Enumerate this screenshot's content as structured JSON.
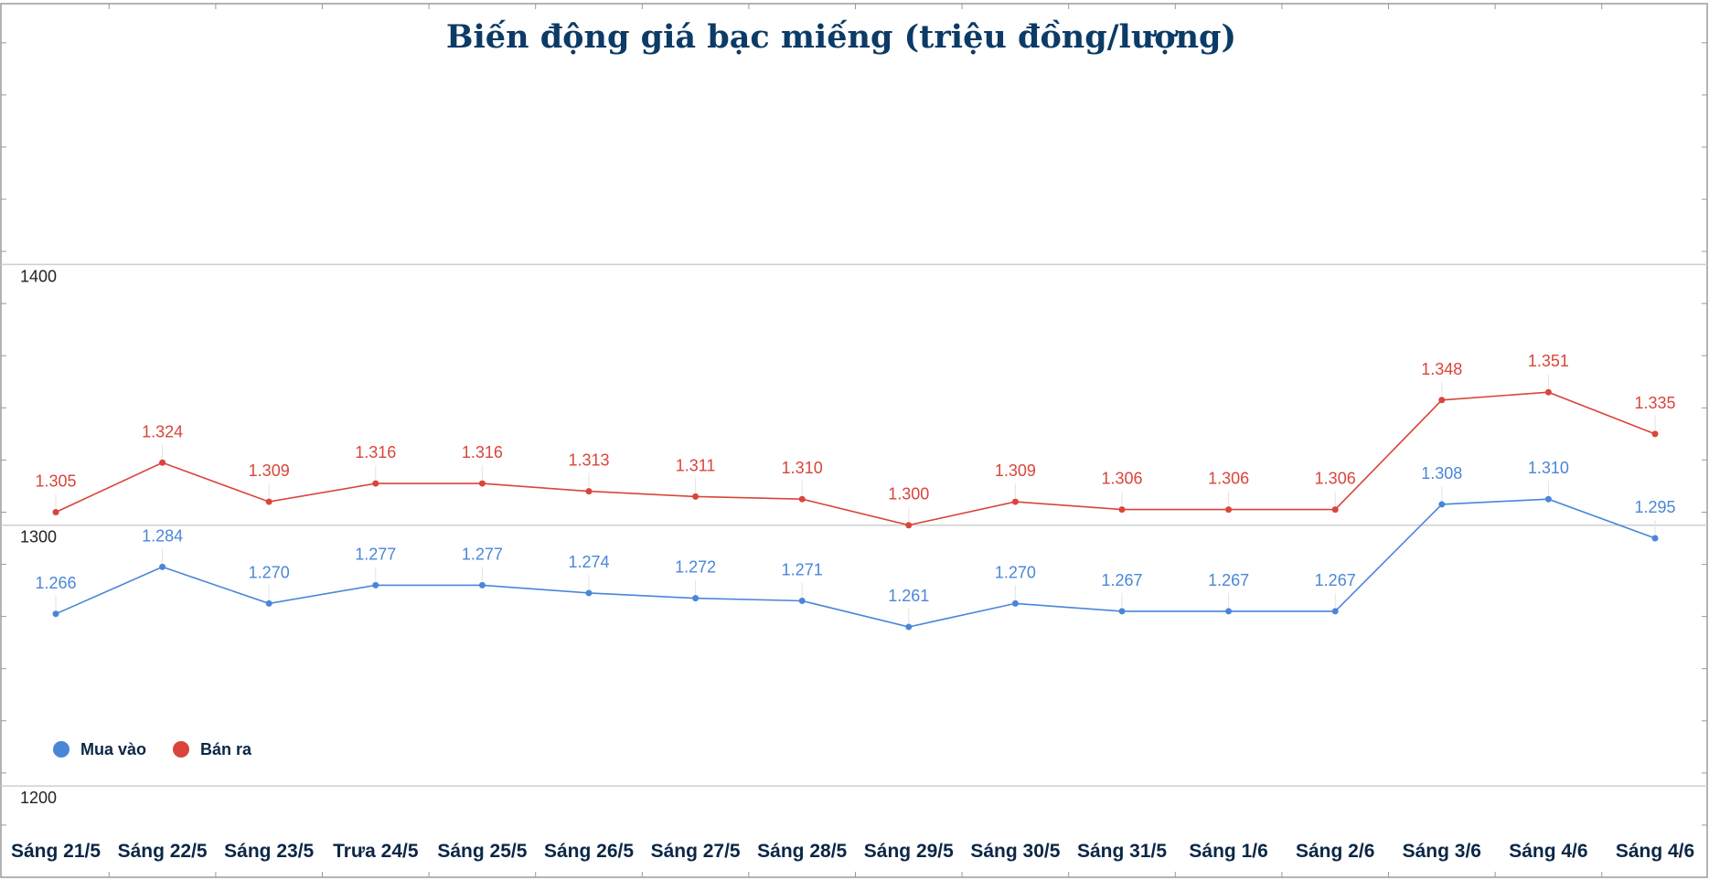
{
  "colors": {
    "buy": "#4a86d8",
    "sell": "#d9453a",
    "title": "#0b3b66",
    "grid": "#cfcfcf",
    "frame": "#9a9a9a"
  },
  "chart_data": {
    "type": "line",
    "title": "Biến động giá bạc miếng (triệu đồng/lượng)",
    "xlabel": "",
    "ylabel": "",
    "ylim": [
      1165,
      1500
    ],
    "yticks": [
      1200,
      1300,
      1400
    ],
    "ytick_labels": [
      "1200",
      "1300",
      "1400"
    ],
    "grid": true,
    "legend_position": "bottom-left",
    "categories": [
      "Sáng 21/5",
      "Sáng 22/5",
      "Sáng 23/5",
      "Trưa 24/5",
      "Sáng 25/5",
      "Sáng 26/5",
      "Sáng 27/5",
      "Sáng 28/5",
      "Sáng 29/5",
      "Sáng 30/5",
      "Sáng 31/5",
      "Sáng 1/6",
      "Sáng 2/6",
      "Sáng 3/6",
      "Sáng 4/6",
      "Sáng 4/6"
    ],
    "series": [
      {
        "name": "Mua vào",
        "color_key": "buy",
        "values": [
          1266,
          1284,
          1270,
          1277,
          1277,
          1274,
          1272,
          1271,
          1261,
          1270,
          1267,
          1267,
          1267,
          1308,
          1310,
          1295
        ],
        "labels": [
          "1.266",
          "1.284",
          "1.270",
          "1.277",
          "1.277",
          "1.274",
          "1.272",
          "1.271",
          "1.261",
          "1.270",
          "1.267",
          "1.267",
          "1.267",
          "1.308",
          "1.310",
          "1.295"
        ]
      },
      {
        "name": "Bán ra",
        "color_key": "sell",
        "values": [
          1305,
          1324,
          1309,
          1316,
          1316,
          1313,
          1311,
          1310,
          1300,
          1309,
          1306,
          1306,
          1306,
          1348,
          1351,
          1335
        ],
        "labels": [
          "1.305",
          "1.324",
          "1.309",
          "1.316",
          "1.316",
          "1.313",
          "1.311",
          "1.310",
          "1.300",
          "1.309",
          "1.306",
          "1.306",
          "1.306",
          "1.348",
          "1.351",
          "1.335"
        ]
      }
    ]
  }
}
